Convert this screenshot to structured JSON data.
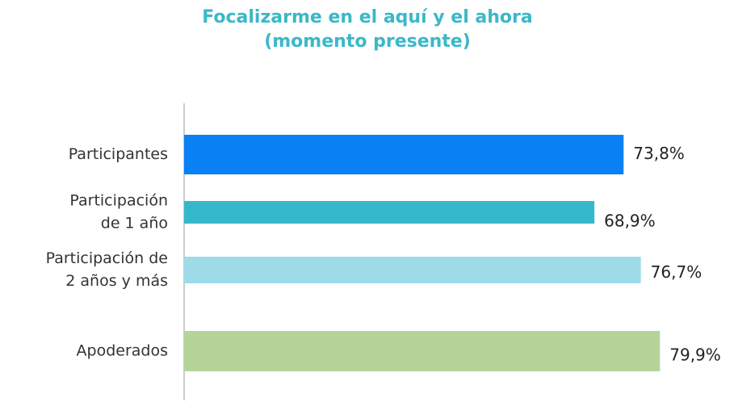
{
  "chart_data": {
    "type": "hbar",
    "title": [
      "Focalizarme en el aquí y el ahora",
      "(momento presente)"
    ],
    "categories": [
      [
        "Participantes"
      ],
      [
        "Participación",
        "de 1 año"
      ],
      [
        "Participación de",
        "2 años y más"
      ],
      [
        "Apoderados"
      ]
    ],
    "values": [
      73.8,
      68.9,
      76.7,
      79.9
    ],
    "value_labels": [
      "73,8%",
      "68,9%",
      "76,7%",
      "79,9%"
    ],
    "colors": [
      "#0a80f5",
      "#36b8cc",
      "#9edbe8",
      "#b5d49a"
    ],
    "xlim": [
      0,
      80
    ]
  }
}
